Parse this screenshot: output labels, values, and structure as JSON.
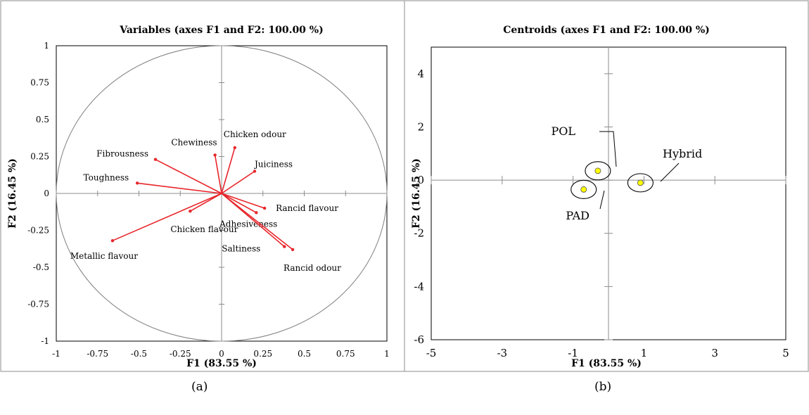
{
  "figure": {
    "caption_a": "(a)",
    "caption_b": "(b)"
  },
  "chart_data": [
    {
      "type": "scatter",
      "subtype": "correlation-circle-biplot",
      "title": "Variables (axes F1 and F2: 100.00 %)",
      "xlabel": "F1 (83.55 %)",
      "ylabel": "F2 (16.45 %)",
      "xlim": [
        -1,
        1
      ],
      "ylim": [
        -1,
        1
      ],
      "xticks": [
        "-1",
        "-0.75",
        "-0.5",
        "-0.25",
        "0",
        "0.25",
        "0.5",
        "0.75",
        "1"
      ],
      "yticks": [
        "1",
        "0.75",
        "0.5",
        "0.25",
        "0",
        "-0.25",
        "-0.5",
        "-0.75",
        "-1"
      ],
      "grid": false,
      "unit_circle": true,
      "arrow_color": "#e8262b",
      "variables": [
        {
          "name": "Fibrousness",
          "x": -0.4,
          "y": 0.23
        },
        {
          "name": "Chewiness",
          "x": -0.04,
          "y": 0.26
        },
        {
          "name": "Chicken odour",
          "x": 0.08,
          "y": 0.31
        },
        {
          "name": "Juiciness",
          "x": 0.2,
          "y": 0.15
        },
        {
          "name": "Toughness",
          "x": -0.51,
          "y": 0.07
        },
        {
          "name": "Rancid flavour",
          "x": 0.26,
          "y": -0.1
        },
        {
          "name": "Adhesiveness",
          "x": 0.21,
          "y": -0.13
        },
        {
          "name": "Chicken flavour",
          "x": -0.19,
          "y": -0.12
        },
        {
          "name": "Saltiness",
          "x": 0.38,
          "y": -0.36
        },
        {
          "name": "Rancid odour",
          "x": 0.43,
          "y": -0.38
        },
        {
          "name": "Metallic flavour",
          "x": -0.66,
          "y": -0.32
        }
      ]
    },
    {
      "type": "scatter",
      "subtype": "centroids",
      "title": "Centroids (axes F1 and F2: 100.00 %)",
      "xlabel": "F1 (83.55 %)",
      "ylabel": "F2 (16.45 %)",
      "xlim": [
        -5,
        5
      ],
      "ylim": [
        -6,
        5
      ],
      "xticks": [
        "-5",
        "-3",
        "-1",
        "1",
        "3",
        "5"
      ],
      "yticks": [
        "4",
        "2",
        "0",
        "-2",
        "-4",
        "-6"
      ],
      "grid": false,
      "point_color": "#ffff00",
      "points": [
        {
          "name": "POL",
          "x": -0.3,
          "y": 0.35
        },
        {
          "name": "PAD",
          "x": -0.7,
          "y": -0.35
        },
        {
          "name": "Hybrid",
          "x": 0.9,
          "y": -0.1
        }
      ]
    }
  ]
}
